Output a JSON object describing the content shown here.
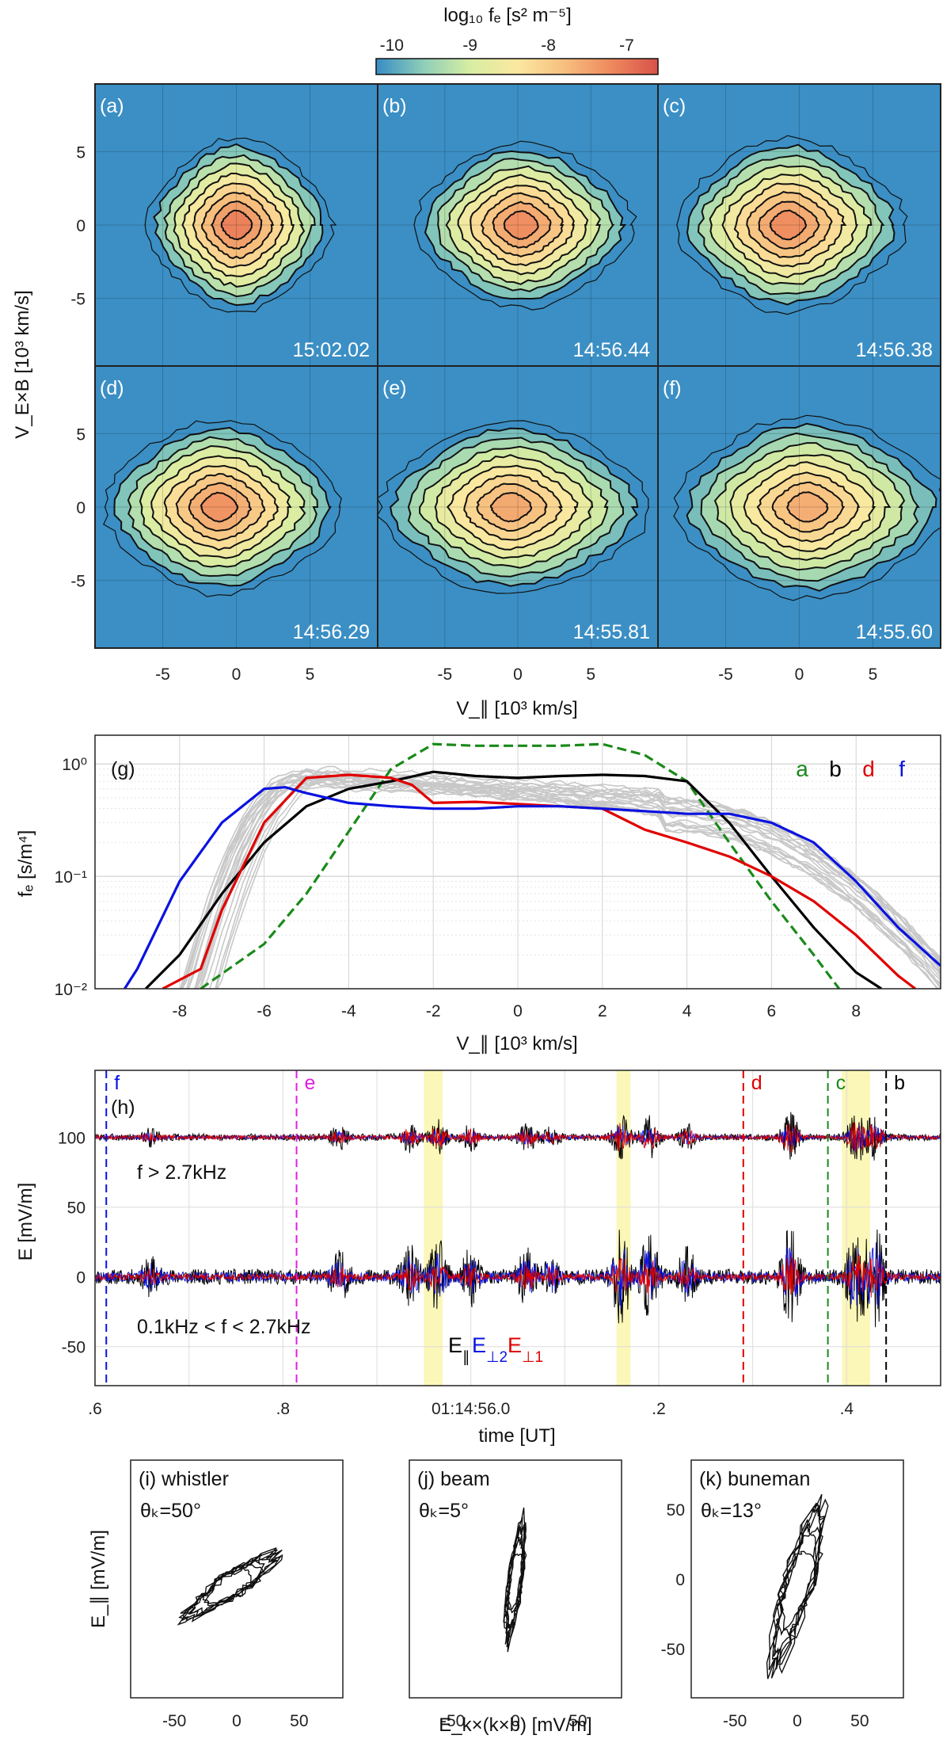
{
  "colorbar": {
    "title": "log₁₀ fₑ [s² m⁻⁵]",
    "ticks": [
      "-10",
      "-9",
      "-8",
      "-7"
    ],
    "range": [
      -10.2,
      -6.6
    ],
    "colors": [
      "#3b8fc4",
      "#8fcfb8",
      "#d8eda2",
      "#fbe8a0",
      "#f7c07f",
      "#ee8b5e",
      "#d9534a"
    ]
  },
  "panels_2d": [
    {
      "label": "(a)",
      "time": "15:02.02",
      "cx": 0,
      "cy": 0,
      "sx": 1.0,
      "sy": 1.0,
      "peak": -7.1
    },
    {
      "label": "(b)",
      "time": "14:56.44",
      "cx": 0.2,
      "cy": 0,
      "sx": 1.2,
      "sy": 0.95,
      "peak": -7.25
    },
    {
      "label": "(c)",
      "time": "14:56.38",
      "cx": -0.8,
      "cy": 0,
      "sx": 1.25,
      "sy": 1.0,
      "peak": -7.25
    },
    {
      "label": "(d)",
      "time": "14:56.29",
      "cx": -1.2,
      "cy": 0,
      "sx": 1.3,
      "sy": 1.0,
      "peak": -7.3
    },
    {
      "label": "(e)",
      "time": "14:55.81",
      "cx": -0.5,
      "cy": 0,
      "sx": 1.5,
      "sy": 1.0,
      "peak": -7.55
    },
    {
      "label": "(f)",
      "time": "14:55.60",
      "cx": 0.5,
      "cy": 0,
      "sx": 1.5,
      "sy": 1.05,
      "peak": -7.6
    }
  ],
  "panels_2d_axes": {
    "ylabel": "V_E×B [10³ km/s]",
    "xlabel": "V_∥ [10³ km/s]",
    "yticks": [
      "5",
      "0",
      "-5"
    ],
    "xticks": [
      "-5",
      "0",
      "5"
    ]
  },
  "chart_data": [
    {
      "type": "line",
      "panel": "(g)",
      "title": "",
      "xlabel": "V_∥ [10³ km/s]",
      "ylabel": "fₑ [s/m⁴]",
      "yscale": "log",
      "xlim": [
        -10,
        10
      ],
      "ylim": [
        0.01,
        1.8
      ],
      "xticks": [
        "-8",
        "-6",
        "-4",
        "-2",
        "0",
        "2",
        "4",
        "6",
        "8"
      ],
      "yticks": [
        "10⁰",
        "10⁻¹",
        "10⁻²"
      ],
      "legend": [
        {
          "label": "a",
          "color": "#1a8a1a"
        },
        {
          "label": "b",
          "color": "#000000"
        },
        {
          "label": "d",
          "color": "#e00000"
        },
        {
          "label": "f",
          "color": "#0a12e0"
        }
      ],
      "series": [
        {
          "name": "a",
          "color": "#1a8a1a",
          "dashed": true,
          "x": [
            -7.5,
            -6,
            -5,
            -4,
            -3,
            -2,
            -1,
            0,
            1,
            2,
            3,
            4,
            5,
            6,
            7,
            7.6
          ],
          "y": [
            0.01,
            0.025,
            0.07,
            0.25,
            0.9,
            1.5,
            1.45,
            1.45,
            1.45,
            1.5,
            1.2,
            0.7,
            0.2,
            0.06,
            0.02,
            0.01
          ]
        },
        {
          "name": "b",
          "color": "#000000",
          "dashed": false,
          "x": [
            -8.8,
            -8,
            -7,
            -6,
            -5,
            -4,
            -3,
            -2,
            -1,
            0,
            1,
            2,
            3,
            4,
            5,
            6,
            7,
            8,
            8.6
          ],
          "y": [
            0.01,
            0.02,
            0.07,
            0.2,
            0.42,
            0.6,
            0.7,
            0.85,
            0.78,
            0.75,
            0.78,
            0.8,
            0.78,
            0.7,
            0.3,
            0.1,
            0.035,
            0.014,
            0.01
          ]
        },
        {
          "name": "d",
          "color": "#e00000",
          "dashed": false,
          "x": [
            -8.4,
            -7.5,
            -7,
            -6,
            -5,
            -4,
            -3,
            -2.5,
            -2,
            -1,
            0,
            1,
            2,
            3,
            4,
            5,
            6,
            7,
            8,
            9,
            9.4
          ],
          "y": [
            0.01,
            0.015,
            0.05,
            0.3,
            0.75,
            0.8,
            0.75,
            0.65,
            0.45,
            0.46,
            0.44,
            0.42,
            0.4,
            0.26,
            0.2,
            0.15,
            0.1,
            0.06,
            0.03,
            0.013,
            0.01
          ]
        },
        {
          "name": "f",
          "color": "#0a12e0",
          "dashed": false,
          "x": [
            -9.3,
            -9,
            -8,
            -7,
            -6,
            -5.5,
            -5,
            -4,
            -3,
            -2,
            -1,
            0,
            1,
            2,
            3,
            4,
            5,
            6,
            7,
            8,
            9,
            10
          ],
          "y": [
            0.01,
            0.015,
            0.09,
            0.3,
            0.6,
            0.62,
            0.55,
            0.45,
            0.42,
            0.4,
            0.4,
            0.42,
            0.42,
            0.4,
            0.38,
            0.36,
            0.36,
            0.3,
            0.2,
            0.09,
            0.035,
            0.016
          ]
        }
      ],
      "grey_background_curves": 22
    },
    {
      "type": "line",
      "panel": "(h)",
      "xlabel": "time [UT]",
      "ylabel": "E [mV/m]",
      "xticks": [
        ".6",
        ".8",
        "01:14:56.0",
        ".2",
        ".4"
      ],
      "yticks": [
        "100",
        "50",
        "0",
        "-50"
      ],
      "ylim": [
        -78,
        148
      ],
      "xlim": [
        0.6,
        1.5
      ],
      "band_labels": [
        "f > 2.7kHz",
        "0.1kHz < f < 2.7kHz"
      ],
      "legend_main": "E",
      "legend_sub": [
        "∥",
        "⊥2",
        "⊥1"
      ],
      "legend_colors": [
        "#000000",
        "#0a12e0",
        "#e00000"
      ],
      "markers": [
        {
          "label": "f",
          "t": 0.612,
          "color": "#0a12e0"
        },
        {
          "label": "e",
          "t": 0.8145,
          "color": "#e020e0"
        },
        {
          "label": "d",
          "t": 1.29,
          "color": "#e00000"
        },
        {
          "label": "c",
          "t": 1.38,
          "color": "#1a8a1a"
        },
        {
          "label": "b",
          "t": 1.442,
          "color": "#000000"
        }
      ],
      "highlights": [
        [
          0.95,
          0.97
        ],
        [
          1.155,
          1.17
        ],
        [
          1.395,
          1.425
        ]
      ]
    },
    {
      "type": "scatter",
      "panel": "(i)",
      "title": "(i) whistler",
      "angle": "θₖ=50°",
      "xticks": [
        "-50",
        "0",
        "50"
      ],
      "xlim": [
        -85,
        85
      ],
      "ylim": [
        -85,
        85
      ],
      "slope": 0.6,
      "spread": 8,
      "center": [
        -5,
        -5
      ]
    },
    {
      "type": "scatter",
      "panel": "(j)",
      "title": "(j) beam",
      "angle": "θₖ=5°",
      "xticks": [
        "-50",
        "0",
        "50"
      ],
      "xlim": [
        -85,
        85
      ],
      "ylim": [
        -85,
        85
      ],
      "slope": 7,
      "spread": 5,
      "center": [
        0,
        0
      ]
    },
    {
      "type": "scatter",
      "panel": "(k)",
      "title": "(k) buneman",
      "angle": "θₖ=13°",
      "xticks": [
        "-50",
        "0",
        "50"
      ],
      "yticks": [
        "50",
        "0",
        "-50"
      ],
      "xlim": [
        -85,
        85
      ],
      "ylim": [
        -85,
        85
      ],
      "slope": 3.2,
      "spread": 10,
      "center": [
        0,
        -5
      ]
    }
  ],
  "bottom_axes": {
    "ylabel": "E_∥ [mV/m]",
    "xlabel": "E_k×(k×b) [mV/m]"
  }
}
